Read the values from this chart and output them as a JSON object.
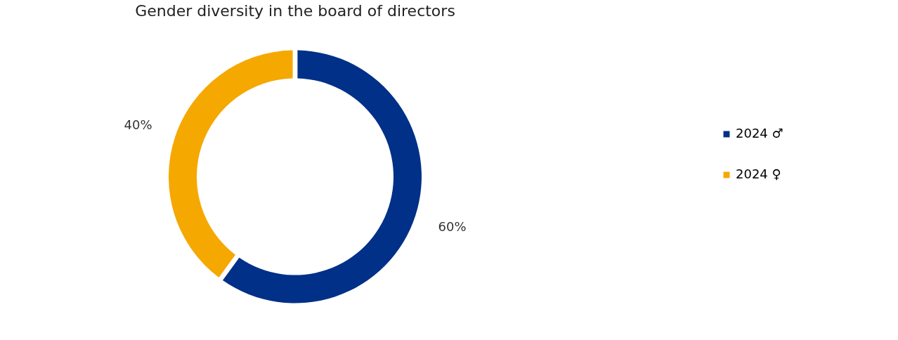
{
  "chart_data": {
    "type": "donut",
    "title": "Gender diversity in the board of directors",
    "categories": [
      "2024 ♂",
      "2024 ♀"
    ],
    "values": [
      60,
      40
    ],
    "colors": [
      "#003087",
      "#f5a800"
    ],
    "value_labels": [
      "60%",
      "40%"
    ],
    "legend": "right"
  }
}
